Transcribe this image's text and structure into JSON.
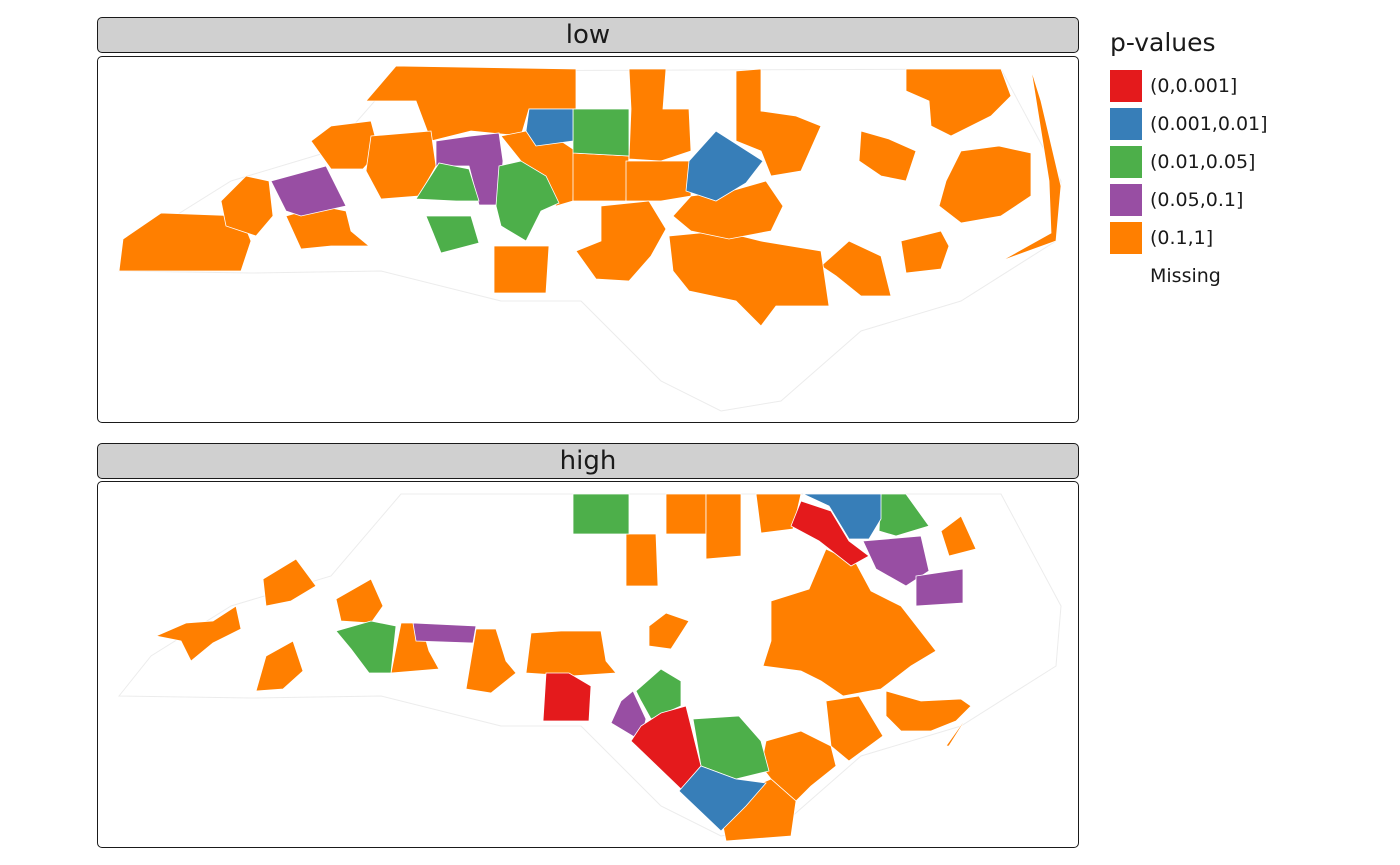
{
  "legend": {
    "title": "p-values",
    "items": [
      {
        "label": "(0,0.001]",
        "color": "#E41A1C"
      },
      {
        "label": "(0.001,0.01]",
        "color": "#377EB8"
      },
      {
        "label": "(0.01,0.05]",
        "color": "#4DAF4A"
      },
      {
        "label": "(0.05,0.1]",
        "color": "#984EA3"
      },
      {
        "label": "(0.1,1]",
        "color": "#FF7F00"
      },
      {
        "label": "Missing",
        "color": "#FFFFFF"
      }
    ]
  },
  "panels": [
    {
      "label": "low"
    },
    {
      "label": "high"
    }
  ]
}
